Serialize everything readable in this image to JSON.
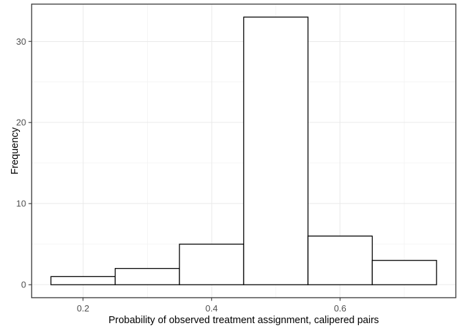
{
  "chart_data": {
    "type": "histogram",
    "title": "",
    "xlabel": "Probability of observed treatment assignment, calipered pairs",
    "ylabel": "Frequency",
    "bin_edges": [
      0.15,
      0.25,
      0.35,
      0.45,
      0.55,
      0.65,
      0.75
    ],
    "counts": [
      1,
      2,
      5,
      33,
      6,
      3
    ],
    "x_ticks": [
      0.2,
      0.4,
      0.6
    ],
    "x_tick_labels": [
      "0.2",
      "0.4",
      "0.6"
    ],
    "x_minor_ticks": [
      0.3,
      0.5,
      0.7
    ],
    "y_ticks": [
      0,
      10,
      20,
      30
    ],
    "y_tick_labels": [
      "0",
      "10",
      "20",
      "30"
    ],
    "y_minor_ticks": [
      5,
      15,
      25
    ],
    "xlim": [
      0.12,
      0.78
    ],
    "ylim": [
      -1.6,
      34.6
    ],
    "grid": true,
    "legend": "none",
    "colors": {
      "bar_fill": "#ffffff",
      "bar_stroke": "#000000",
      "grid_major": "#e9e9e9",
      "grid_minor": "#f4f4f4",
      "panel_border": "#333333",
      "tick_mark": "#333333",
      "tick_label": "#4d4d4d",
      "axis_title": "#000000",
      "background": "#ffffff"
    }
  }
}
